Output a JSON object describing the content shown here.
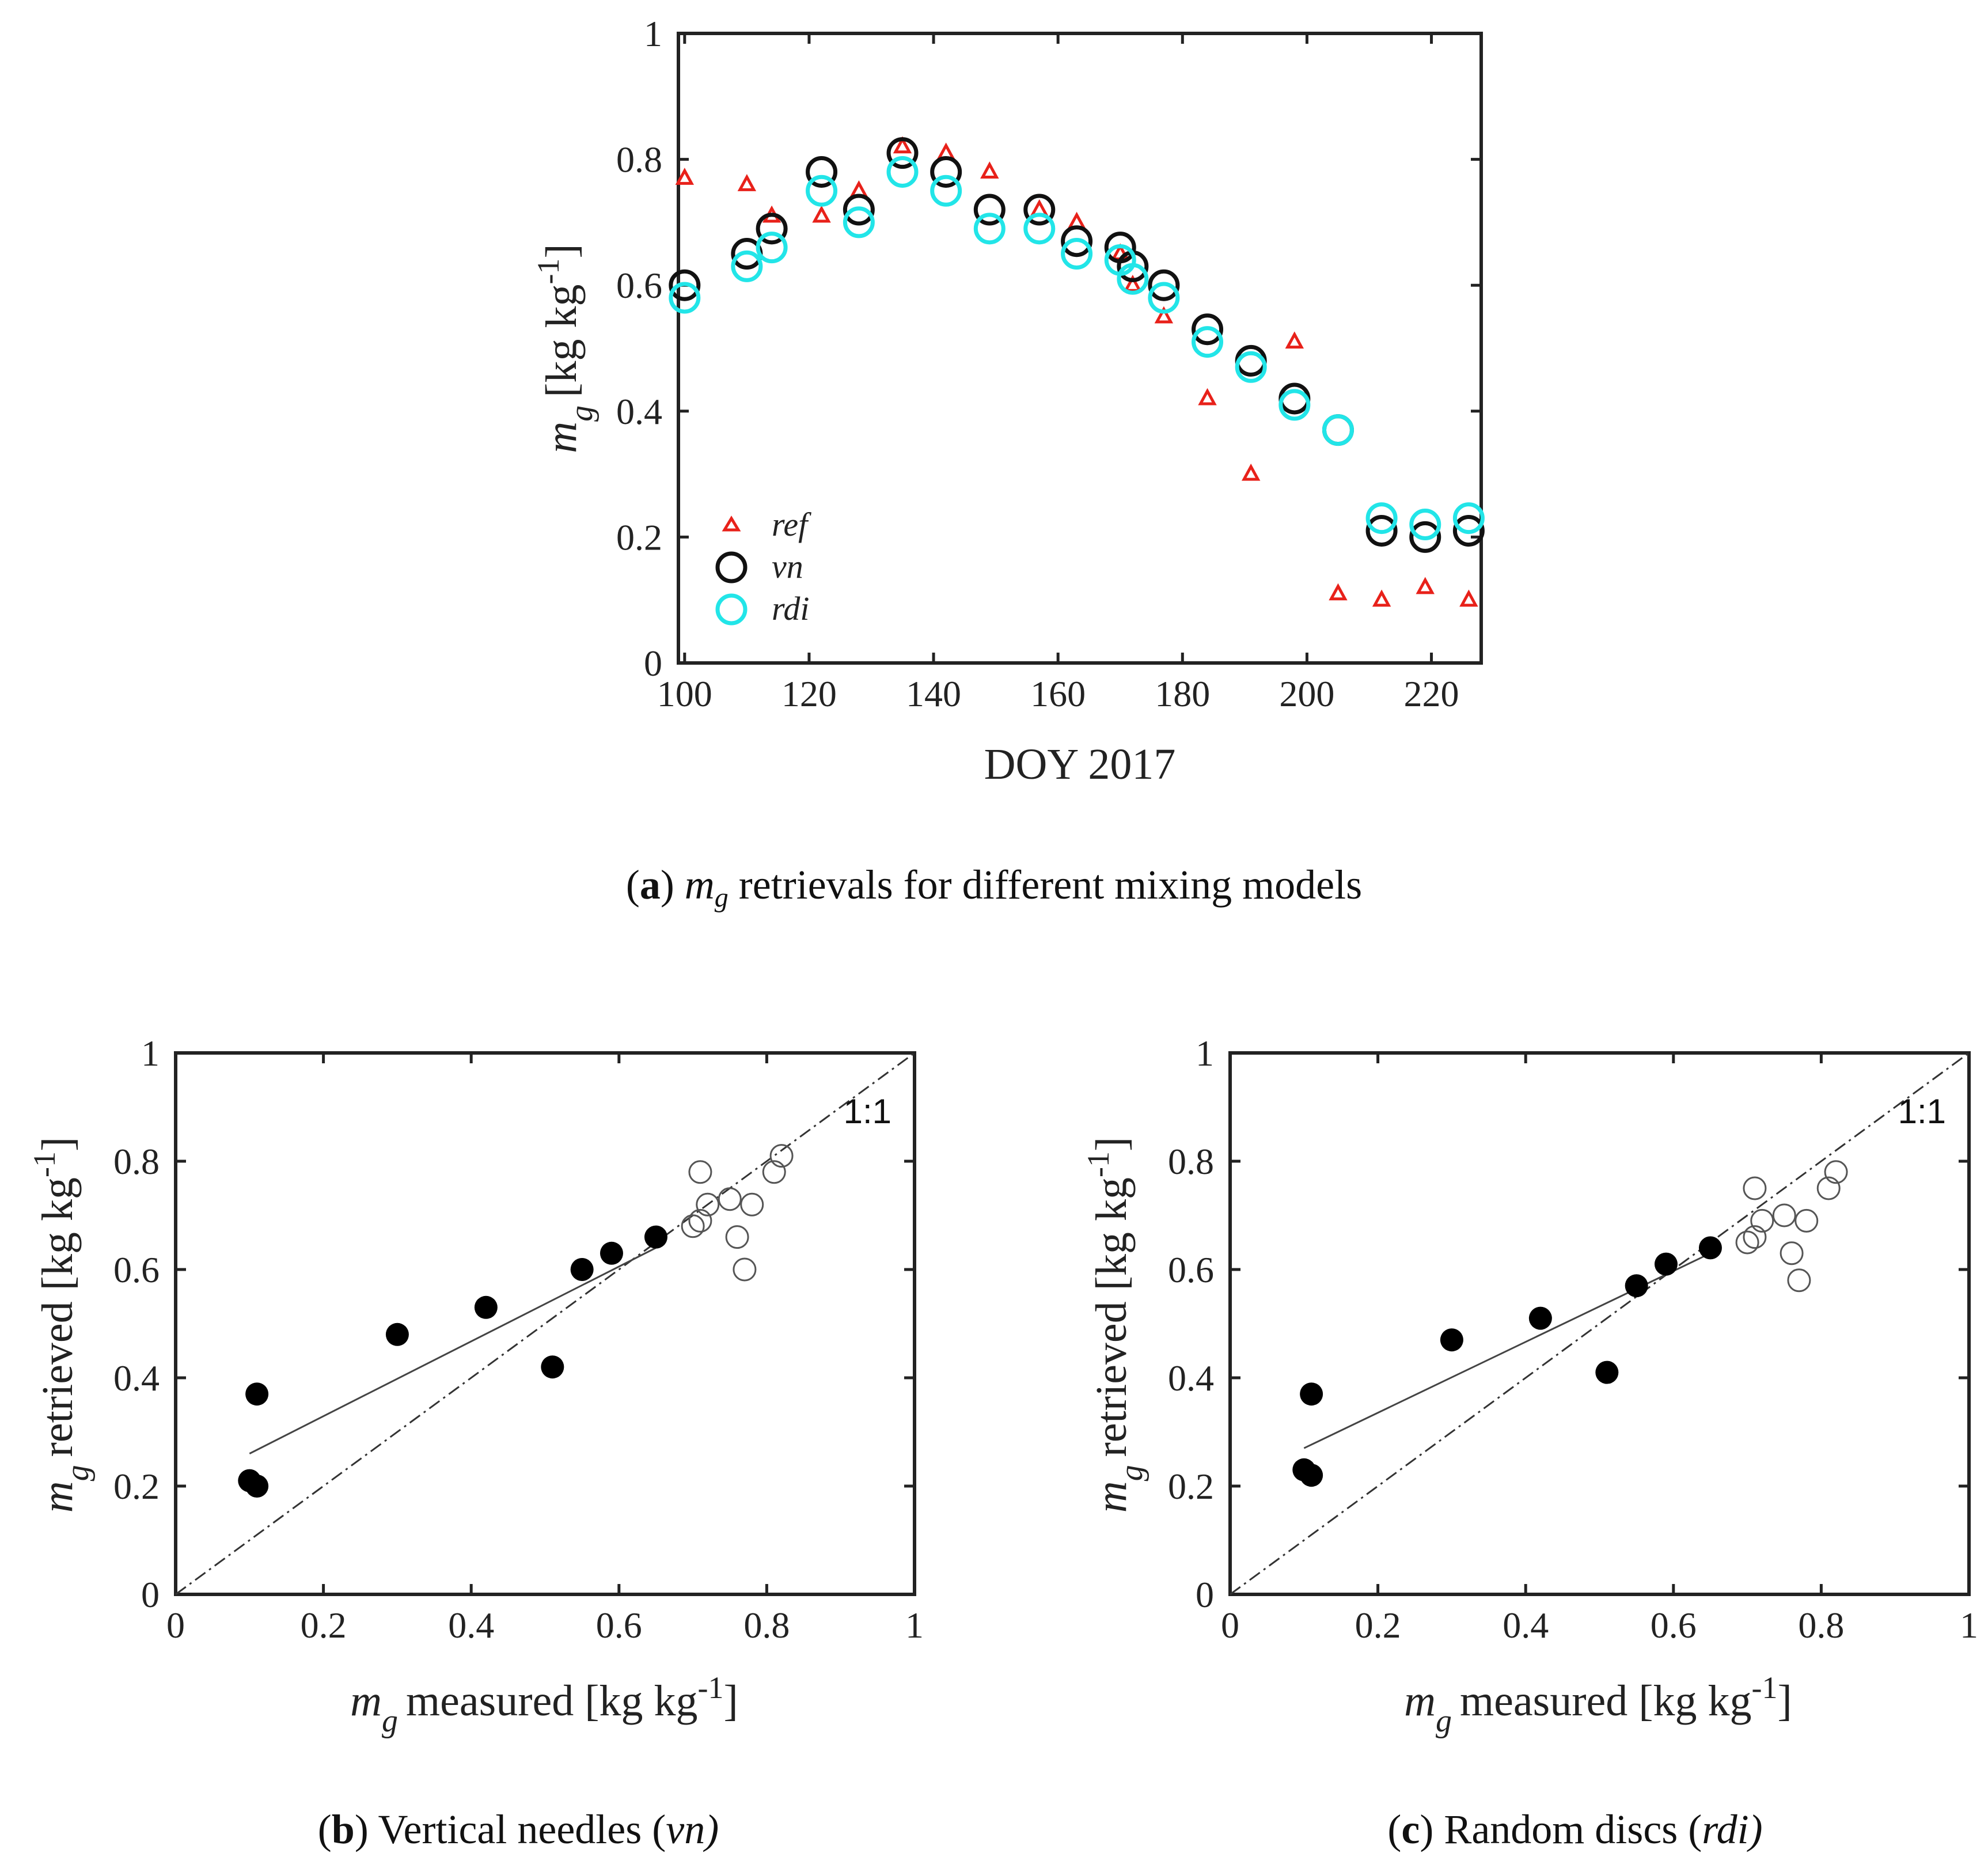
{
  "colors": {
    "ref": "#e8211a",
    "vn": "#111111",
    "rdi": "#22e5e8",
    "axis": "#222222"
  },
  "chart_data": [
    {
      "id": "a",
      "type": "scatter",
      "xlabel": "DOY 2017",
      "ylabel_sym": "m",
      "ylabel_sub": "g",
      "ylabel_unit": "[kg kg",
      "ylabel_sup": "-1",
      "ylabel_close": "]",
      "xlim": [
        99,
        228
      ],
      "ylim": [
        0,
        1
      ],
      "xticks": [
        "100",
        "120",
        "140",
        "160",
        "180",
        "200",
        "220"
      ],
      "xtick_values": [
        100,
        120,
        140,
        160,
        180,
        200,
        220
      ],
      "yticks": [
        "0",
        "0.2",
        "0.4",
        "0.6",
        "0.8",
        "1"
      ],
      "ytick_values": [
        0,
        0.2,
        0.4,
        0.6,
        0.8,
        1
      ],
      "legend": [
        "ref",
        "vn",
        "rdi"
      ],
      "legend_position": "lower-left",
      "series": [
        {
          "name": "ref",
          "marker": "triangle",
          "x": [
            100,
            110,
            114,
            122,
            128,
            135,
            142,
            149,
            157,
            163,
            170,
            172,
            177,
            184,
            191,
            198,
            205,
            212,
            219,
            226
          ],
          "y": [
            0.77,
            0.76,
            0.71,
            0.71,
            0.75,
            0.82,
            0.81,
            0.78,
            0.72,
            0.7,
            0.65,
            0.6,
            0.55,
            0.42,
            0.3,
            0.51,
            0.11,
            0.1,
            0.12,
            0.1
          ]
        },
        {
          "name": "vn",
          "marker": "circle",
          "x": [
            100,
            110,
            114,
            122,
            128,
            135,
            142,
            149,
            157,
            163,
            170,
            172,
            177,
            184,
            191,
            198,
            205,
            212,
            219,
            226
          ],
          "y": [
            0.6,
            0.65,
            0.69,
            0.78,
            0.72,
            0.81,
            0.78,
            0.72,
            0.72,
            0.67,
            0.66,
            0.63,
            0.6,
            0.53,
            0.48,
            0.42,
            0.37,
            0.21,
            0.2,
            0.21
          ]
        },
        {
          "name": "rdi",
          "marker": "circle",
          "x": [
            100,
            110,
            114,
            122,
            128,
            135,
            142,
            149,
            157,
            163,
            170,
            172,
            177,
            184,
            191,
            198,
            205,
            212,
            219,
            226
          ],
          "y": [
            0.58,
            0.63,
            0.66,
            0.75,
            0.7,
            0.78,
            0.75,
            0.69,
            0.69,
            0.65,
            0.64,
            0.61,
            0.58,
            0.51,
            0.47,
            0.41,
            0.37,
            0.23,
            0.22,
            0.23
          ]
        }
      ]
    },
    {
      "id": "b",
      "type": "scatter",
      "xlabel_sym": "m",
      "xlabel_sub": "g",
      "xlabel_text": "measured [kg kg",
      "xlabel_sup": "-1",
      "xlabel_close": "]",
      "ylabel_sym": "m",
      "ylabel_sub": "g",
      "ylabel_text": "retrieved [kg kg",
      "ylabel_sup": "-1",
      "ylabel_close": "]",
      "xlim": [
        0,
        1
      ],
      "ylim": [
        0,
        1
      ],
      "ticks": [
        "0",
        "0.2",
        "0.4",
        "0.6",
        "0.8",
        "1"
      ],
      "tick_values": [
        0,
        0.2,
        0.4,
        0.6,
        0.8,
        1
      ],
      "one_to_one_label": "1:1",
      "fit_line": {
        "x": [
          0.1,
          0.65
        ],
        "y": [
          0.26,
          0.64
        ]
      },
      "filled": {
        "x": [
          0.1,
          0.11,
          0.11,
          0.3,
          0.42,
          0.51,
          0.55,
          0.59,
          0.65
        ],
        "y": [
          0.21,
          0.2,
          0.37,
          0.48,
          0.53,
          0.42,
          0.6,
          0.63,
          0.66
        ]
      },
      "open": {
        "x": [
          0.7,
          0.71,
          0.71,
          0.72,
          0.75,
          0.76,
          0.77,
          0.78,
          0.81,
          0.82
        ],
        "y": [
          0.68,
          0.69,
          0.78,
          0.72,
          0.73,
          0.66,
          0.6,
          0.72,
          0.78,
          0.81
        ]
      }
    },
    {
      "id": "c",
      "type": "scatter",
      "xlabel_sym": "m",
      "xlabel_sub": "g",
      "xlabel_text": "measured [kg kg",
      "xlabel_sup": "-1",
      "xlabel_close": "]",
      "ylabel_sym": "m",
      "ylabel_sub": "g",
      "ylabel_text": "retrieved [kg kg",
      "ylabel_sup": "-1",
      "ylabel_close": "]",
      "xlim": [
        0,
        1
      ],
      "ylim": [
        0,
        1
      ],
      "ticks": [
        "0",
        "0.2",
        "0.4",
        "0.6",
        "0.8",
        "1"
      ],
      "tick_values": [
        0,
        0.2,
        0.4,
        0.6,
        0.8,
        1
      ],
      "one_to_one_label": "1:1",
      "fit_line": {
        "x": [
          0.1,
          0.65
        ],
        "y": [
          0.27,
          0.63
        ]
      },
      "filled": {
        "x": [
          0.1,
          0.11,
          0.11,
          0.3,
          0.42,
          0.51,
          0.55,
          0.59,
          0.65
        ],
        "y": [
          0.23,
          0.22,
          0.37,
          0.47,
          0.51,
          0.41,
          0.57,
          0.61,
          0.64
        ]
      },
      "open": {
        "x": [
          0.7,
          0.71,
          0.71,
          0.72,
          0.75,
          0.76,
          0.77,
          0.78,
          0.81,
          0.82
        ],
        "y": [
          0.65,
          0.66,
          0.75,
          0.69,
          0.7,
          0.63,
          0.58,
          0.69,
          0.75,
          0.78
        ]
      }
    }
  ],
  "captions": {
    "a": {
      "letter": "a",
      "sym": "m",
      "sub": "g",
      "text": " retrievals for different mixing models"
    },
    "b": {
      "letter": "b",
      "text": " Vertical needles (",
      "italic": "vn)"
    },
    "c": {
      "letter": "c",
      "text": " Random discs (",
      "italic": "rdi)"
    }
  }
}
